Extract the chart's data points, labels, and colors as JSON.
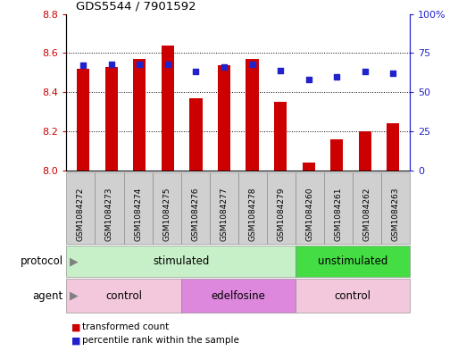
{
  "title": "GDS5544 / 7901592",
  "samples": [
    "GSM1084272",
    "GSM1084273",
    "GSM1084274",
    "GSM1084275",
    "GSM1084276",
    "GSM1084277",
    "GSM1084278",
    "GSM1084279",
    "GSM1084260",
    "GSM1084261",
    "GSM1084262",
    "GSM1084263"
  ],
  "bar_values": [
    8.52,
    8.53,
    8.57,
    8.64,
    8.37,
    8.54,
    8.57,
    8.35,
    8.04,
    8.16,
    8.2,
    8.24
  ],
  "dot_values": [
    67,
    68,
    68,
    68,
    63,
    66,
    68,
    64,
    58,
    60,
    63,
    62
  ],
  "bar_color": "#cc0000",
  "dot_color": "#2222cc",
  "ylim_left": [
    8.0,
    8.8
  ],
  "ylim_right": [
    0,
    100
  ],
  "yticks_left": [
    8.0,
    8.2,
    8.4,
    8.6,
    8.8
  ],
  "yticks_right": [
    0,
    25,
    50,
    75,
    100
  ],
  "ytick_labels_right": [
    "0",
    "25",
    "50",
    "75",
    "100%"
  ],
  "bar_width": 0.45,
  "grid_color": "black",
  "background_color": "#ffffff",
  "xlabel_protocol": "protocol",
  "xlabel_agent": "agent",
  "proto_groups": [
    {
      "label": "stimulated",
      "start": 0,
      "end": 8,
      "color": "#c8f0c8"
    },
    {
      "label": "unstimulated",
      "start": 8,
      "end": 12,
      "color": "#44dd44"
    }
  ],
  "agent_groups": [
    {
      "label": "control",
      "start": 0,
      "end": 4,
      "color": "#f4c8dc"
    },
    {
      "label": "edelfosine",
      "start": 4,
      "end": 8,
      "color": "#dd88dd"
    },
    {
      "label": "control",
      "start": 8,
      "end": 12,
      "color": "#f4c8dc"
    }
  ],
  "sample_box_color": "#d0d0d0",
  "legend_bar_label": "transformed count",
  "legend_dot_label": "percentile rank within the sample",
  "legend_bar_color": "#cc0000",
  "legend_dot_color": "#2222cc"
}
